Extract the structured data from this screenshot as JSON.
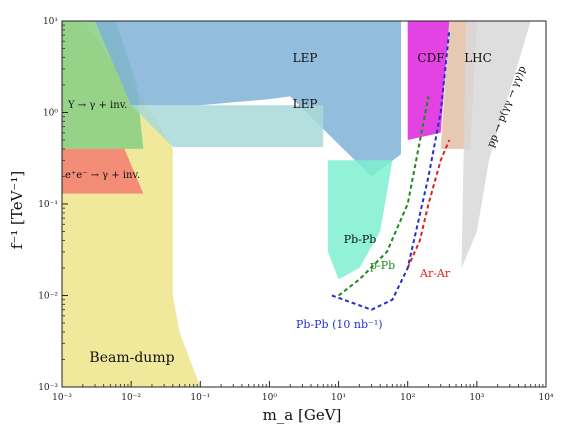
{
  "chart_data": {
    "type": "area",
    "title": "",
    "xlabel": "m_a  [GeV]",
    "ylabel": "f⁻¹  [TeV⁻¹]",
    "xscale": "log",
    "yscale": "log",
    "xlim": [
      0.001,
      10000
    ],
    "ylim": [
      0.001,
      10
    ],
    "x_ticks": [
      "10⁻³",
      "10⁻²",
      "10⁻¹",
      "10⁰",
      "10¹",
      "10²",
      "10³",
      "10⁴"
    ],
    "y_ticks": [
      "10⁻³",
      "10⁻²",
      "10⁻¹",
      "10⁰",
      "10¹"
    ],
    "grid": false,
    "regions": [
      {
        "label": "Beam-dump",
        "color": "#ede58a",
        "boundary": [
          [
            0.001,
            0.001
          ],
          [
            0.1,
            0.001
          ],
          [
            0.05,
            0.004
          ],
          [
            0.04,
            0.01
          ],
          [
            0.04,
            0.4
          ],
          [
            0.02,
            1
          ],
          [
            0.01,
            2
          ],
          [
            0.004,
            5
          ],
          [
            0.002,
            10
          ],
          [
            0.001,
            10
          ]
        ]
      },
      {
        "label": "Υ → γ + inv.",
        "color": "#86cf86",
        "boundary": [
          [
            0.001,
            0.4
          ],
          [
            0.015,
            0.4
          ],
          [
            0.012,
            2
          ],
          [
            0.006,
            10
          ],
          [
            0.001,
            10
          ]
        ]
      },
      {
        "label": "e⁺e⁻ → γ + inv.",
        "color": "#f47c72",
        "boundary": [
          [
            0.001,
            0.13
          ],
          [
            0.015,
            0.13
          ],
          [
            0.008,
            0.4
          ],
          [
            0.001,
            0.4
          ]
        ]
      },
      {
        "label": "LEP",
        "color": "#7fb2d6",
        "boundary": [
          [
            0.003,
            10
          ],
          [
            80,
            10
          ],
          [
            80,
            0.35
          ],
          [
            30,
            0.2
          ],
          [
            10,
            0.45
          ],
          [
            2,
            1.5
          ],
          [
            1,
            1.4
          ],
          [
            0.1,
            1.2
          ],
          [
            0.01,
            1.2
          ]
        ]
      },
      {
        "label": "LEP",
        "color": "#a8d8d8",
        "boundary": [
          [
            0.01,
            1.2
          ],
          [
            6,
            1.2
          ],
          [
            6,
            0.42
          ],
          [
            0.04,
            0.42
          ]
        ]
      },
      {
        "label": "Pb-Pb",
        "color": "#7ef0d0",
        "boundary": [
          [
            7,
            0.3
          ],
          [
            60,
            0.3
          ],
          [
            40,
            0.05
          ],
          [
            20,
            0.02
          ],
          [
            10,
            0.015
          ],
          [
            7,
            0.03
          ]
        ]
      },
      {
        "label": "CDF",
        "color": "#dd22dd",
        "boundary": [
          [
            100,
            10
          ],
          [
            400,
            10
          ],
          [
            300,
            0.6
          ],
          [
            100,
            0.5
          ]
        ]
      },
      {
        "label": "LHC",
        "color": "#e3bfa6",
        "boundary": [
          [
            400,
            10
          ],
          [
            1000,
            10
          ],
          [
            800,
            0.4
          ],
          [
            300,
            0.4
          ]
        ]
      },
      {
        "label": "pp → p(γγ → γγ)p",
        "color": "#d8d8d8",
        "boundary": [
          [
            700,
            10
          ],
          [
            6000,
            10
          ],
          [
            1500,
            0.3
          ],
          [
            1000,
            0.05
          ],
          [
            600,
            0.02
          ]
        ]
      }
    ],
    "series": [
      {
        "name": "p-Pb",
        "color": "#1a8a1a",
        "style": "dashed",
        "x": [
          10,
          20,
          50,
          100,
          200
        ],
        "y": [
          0.01,
          0.015,
          0.03,
          0.1,
          1.5
        ]
      },
      {
        "name": "Ar-Ar",
        "color": "#e02020",
        "style": "dashed",
        "x": [
          100,
          150,
          200,
          300,
          400
        ],
        "y": [
          0.02,
          0.04,
          0.1,
          0.3,
          0.5
        ]
      },
      {
        "name": "Pb-Pb (10 nb⁻¹)",
        "color": "#2030d0",
        "style": "dashed",
        "x": [
          8,
          30,
          60,
          100,
          200,
          300,
          400
        ],
        "y": [
          0.01,
          0.007,
          0.009,
          0.02,
          0.2,
          1.0,
          8.0
        ]
      }
    ]
  }
}
